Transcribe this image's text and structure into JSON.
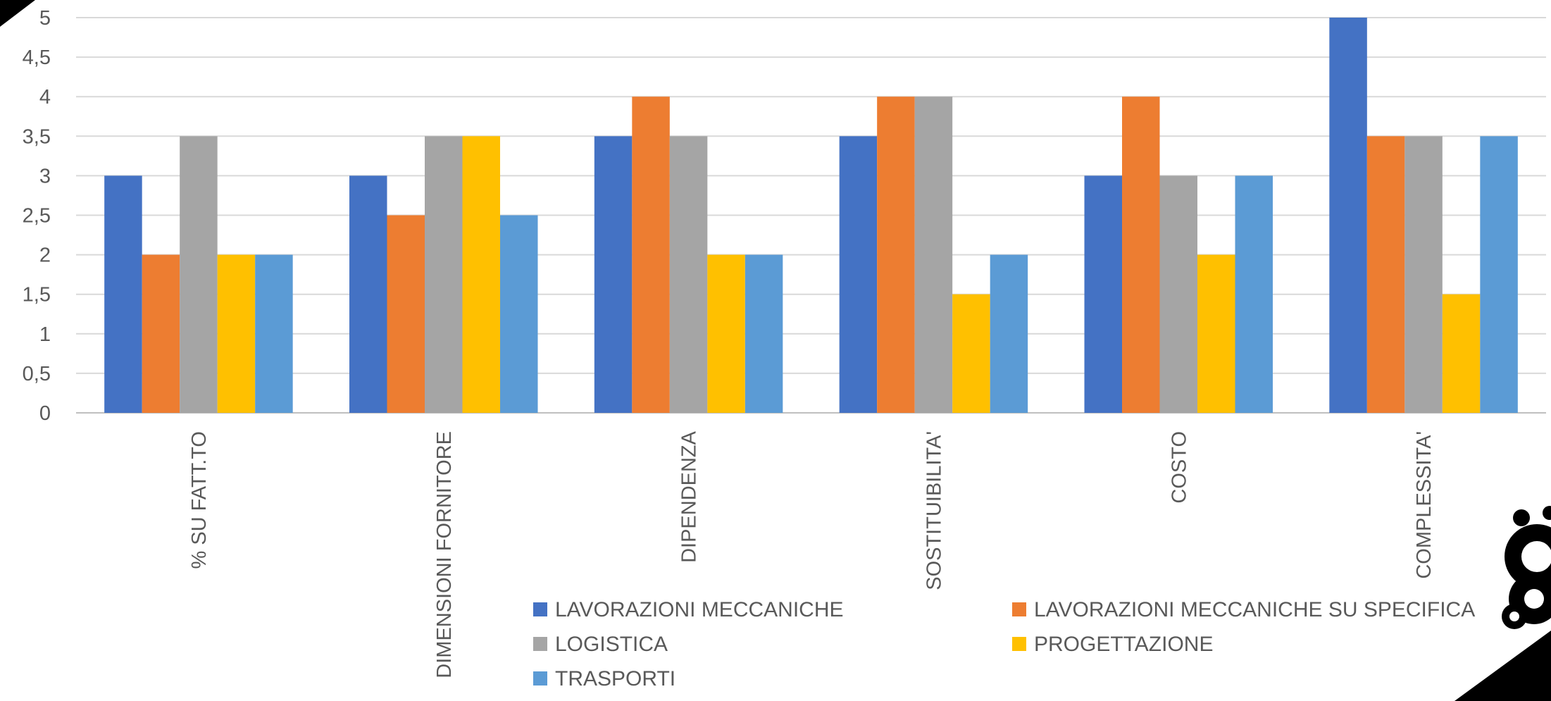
{
  "chart_data": {
    "type": "bar",
    "title": "",
    "xlabel": "",
    "ylabel": "",
    "categories": [
      "% SU FATT.TO",
      "DIMENSIONI FORNITORE",
      "DIPENDENZA",
      "SOSTITUIBILITA'",
      "COSTO",
      "COMPLESSITA'"
    ],
    "ylim": [
      0,
      5
    ],
    "yticks": [
      0,
      0.5,
      1,
      1.5,
      2,
      2.5,
      3,
      3.5,
      4,
      4.5,
      5
    ],
    "ytick_labels": [
      "0",
      "0,5",
      "1",
      "1,5",
      "2",
      "2,5",
      "3",
      "3,5",
      "4",
      "4,5",
      "5"
    ],
    "grid": true,
    "legend_position": "bottom",
    "series": [
      {
        "name": "LAVORAZIONI MECCANICHE",
        "color": "#4472C4",
        "values": [
          3,
          3,
          3.5,
          3.5,
          3,
          5
        ]
      },
      {
        "name": "LAVORAZIONI MECCANICHE SU SPECIFICA",
        "color": "#ED7D31",
        "values": [
          2,
          2.5,
          4,
          4,
          4,
          3.5
        ]
      },
      {
        "name": "LOGISTICA",
        "color": "#A5A5A5",
        "values": [
          3.5,
          3.5,
          3.5,
          4,
          3,
          3.5
        ]
      },
      {
        "name": "PROGETTAZIONE",
        "color": "#FFC000",
        "values": [
          2,
          3.5,
          2,
          1.5,
          2,
          1.5
        ]
      },
      {
        "name": "TRASPORTI",
        "color": "#5B9BD5",
        "values": [
          2,
          2.5,
          2,
          2,
          3,
          3.5
        ]
      }
    ]
  },
  "decorations": {
    "corner_top_left": "black-triangle",
    "corner_bottom_right": "black-triangle",
    "logo": "gears-icon"
  }
}
